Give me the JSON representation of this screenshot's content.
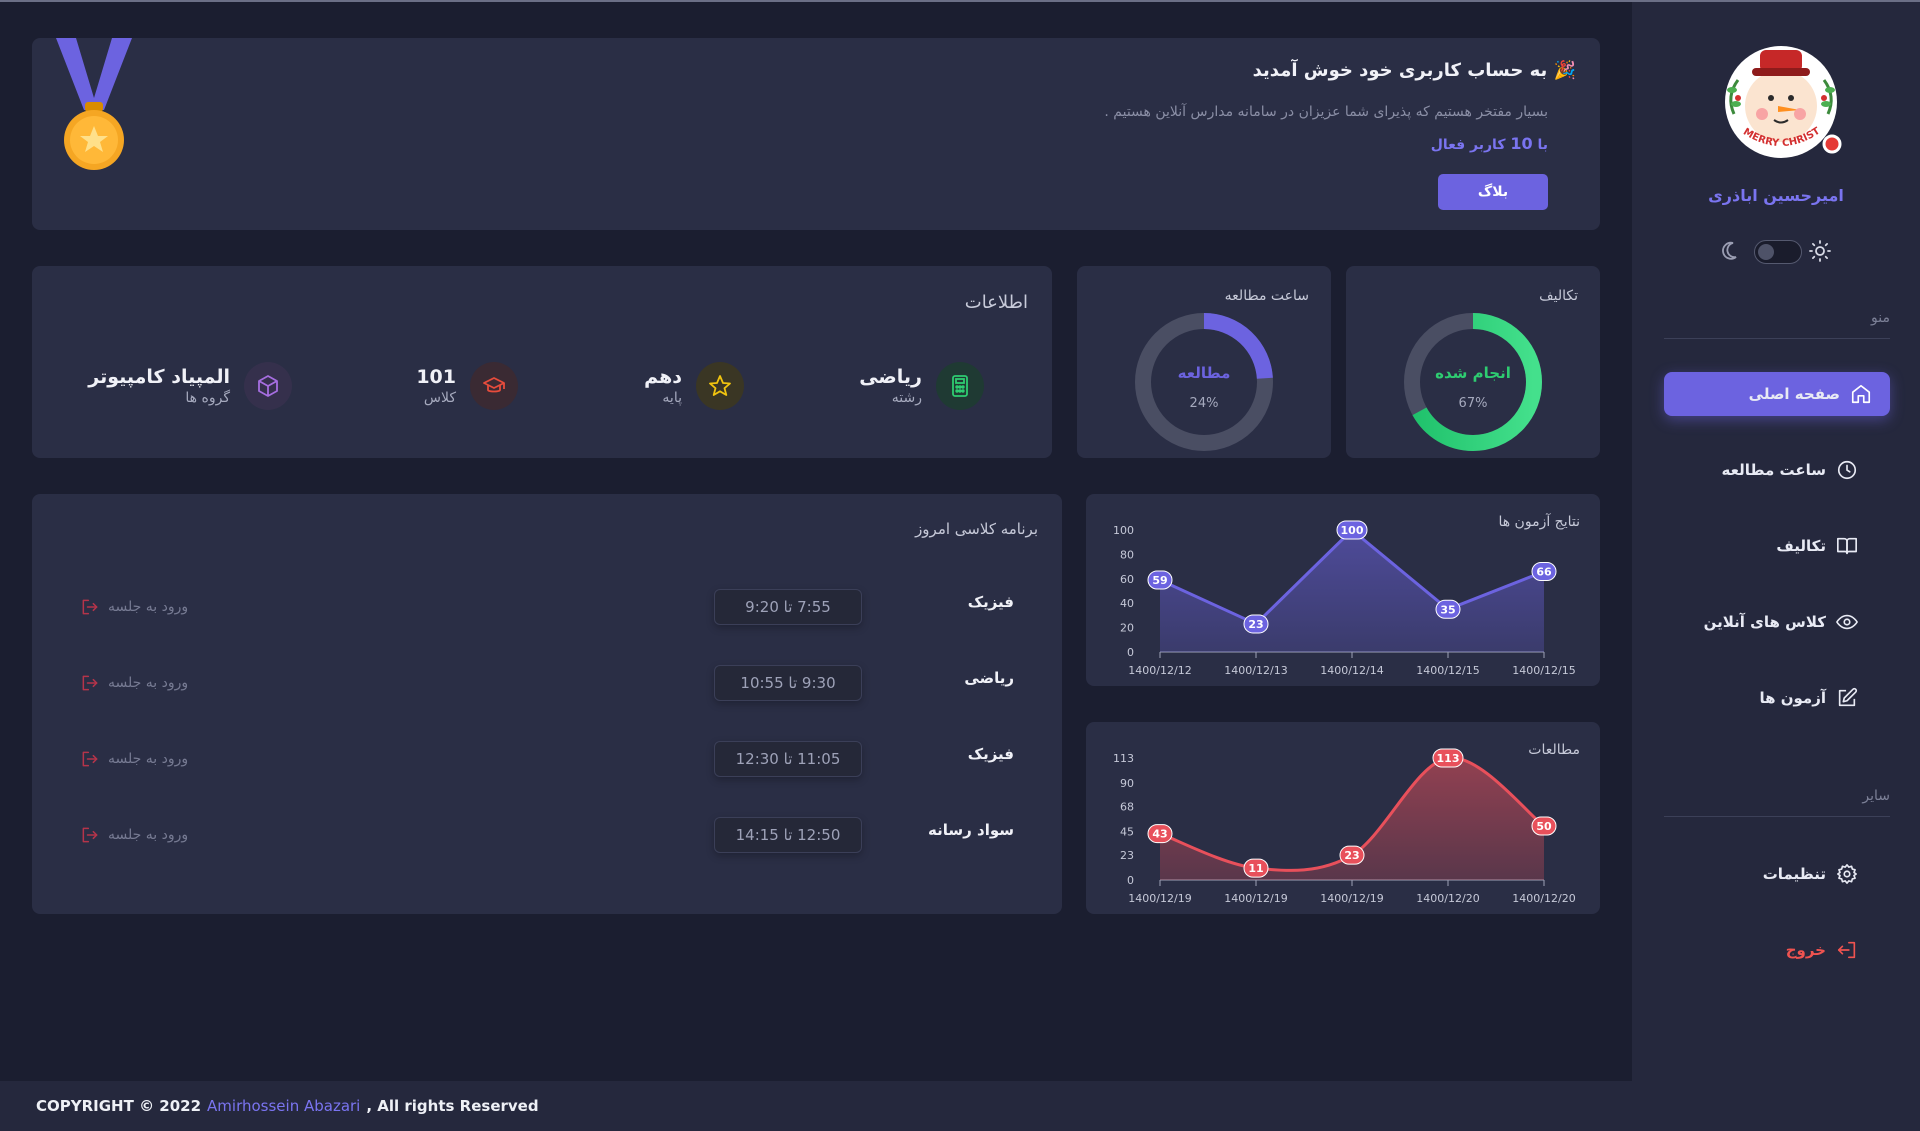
{
  "sidebar": {
    "username": "امیرحسین اباذری",
    "menu_label": "منو",
    "other_label": "سایر",
    "items": [
      {
        "label": "صفحه اصلی",
        "icon": "home-icon"
      },
      {
        "label": "ساعت مطالعه",
        "icon": "clock-icon"
      },
      {
        "label": "تکالیف",
        "icon": "book-icon"
      },
      {
        "label": "کلاس های آنلاین",
        "icon": "eye-icon"
      },
      {
        "label": "آزمون ها",
        "icon": "edit-icon"
      }
    ],
    "settings_label": "تنظیمات",
    "logout_label": "خروج",
    "avatar_text": "MERRY CHRISTMAS"
  },
  "welcome": {
    "title": "به حساب کاربری خود خوش آمدید",
    "subtitle": "بسیار مفتخر هستیم که پذیرای شما عزیزان در سامانه مدارس آنلاین هستیم .",
    "active_prefix": "با",
    "active_count": "10",
    "active_suffix": "کاربر فعال",
    "blog_button": "بلاگ"
  },
  "homework": {
    "title": "تکالیف",
    "center_label": "انجام شده",
    "percent": 67,
    "percent_text": "67%",
    "color": "#2ecc71"
  },
  "study": {
    "title": "ساعت مطالعه",
    "center_label": "مطالعه",
    "percent": 24,
    "percent_text": "24%",
    "color": "#6c63e0"
  },
  "info": {
    "title": "اطلاعات",
    "items": [
      {
        "value": "ریاضی",
        "label": "رشته",
        "icon": "calculator-icon",
        "color": "#2ecc71"
      },
      {
        "value": "دهم",
        "label": "پایه",
        "icon": "star-icon",
        "color": "#f1c40f"
      },
      {
        "value": "101",
        "label": "کلاس",
        "icon": "graduation-cap-icon",
        "color": "#e74c3c"
      },
      {
        "value": "المپیاد کامپیوتر",
        "label": "گروه ها",
        "icon": "cube-icon",
        "color": "#9b59b6"
      }
    ]
  },
  "schedule": {
    "title": "برنامه کلاسی امروز",
    "join_label": "ورود به جلسه",
    "rows": [
      {
        "subject": "فیزیک",
        "time": "7:55 تا 9:20"
      },
      {
        "subject": "ریاضی",
        "time": "9:30 تا 10:55"
      },
      {
        "subject": "فیزیک",
        "time": "11:05 تا 12:30"
      },
      {
        "subject": "سواد رسانه",
        "time": "12:50 تا 14:15"
      }
    ]
  },
  "chart_data": [
    {
      "type": "area",
      "title": "نتایج آزمون ها",
      "x": [
        "1400/12/12",
        "1400/12/13",
        "1400/12/14",
        "1400/12/15",
        "1400/12/15"
      ],
      "values": [
        59,
        23,
        100,
        35,
        66
      ],
      "yticks": [
        0,
        20,
        40,
        60,
        80,
        100
      ],
      "ylim": [
        0,
        100
      ],
      "curve": "straight",
      "color": "#6c63e0"
    },
    {
      "type": "area",
      "title": "مطالعات",
      "x": [
        "1400/12/19",
        "1400/12/19",
        "1400/12/19",
        "1400/12/20",
        "1400/12/20"
      ],
      "values": [
        43,
        11,
        23,
        113,
        50
      ],
      "yticks": [
        0,
        23,
        45,
        68,
        90,
        113
      ],
      "ylim": [
        0,
        113
      ],
      "curve": "smooth",
      "color": "#e8505b"
    }
  ],
  "footer": {
    "prefix": "COPYRIGHT © 2022",
    "author": "Amirhossein Abazari",
    "suffix": ", All rights Reserved"
  }
}
